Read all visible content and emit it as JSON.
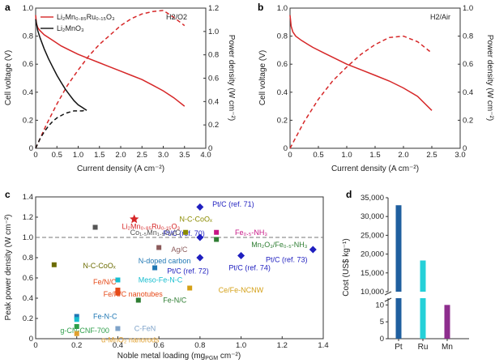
{
  "chart_data": [
    {
      "panel": "a",
      "type": "line",
      "corner_label": "H2/O2",
      "xlabel": "Current density (A cm⁻²)",
      "ylabel_left": "Cell voltage (V)",
      "ylabel_right": "Power density (W cm⁻²)",
      "xlim": [
        0,
        4.0
      ],
      "ylim_left": [
        0,
        1.0
      ],
      "ylim_right": [
        0,
        1.2
      ],
      "xticks": [
        "0",
        "0.5",
        "1.0",
        "1.5",
        "2.0",
        "2.5",
        "3.0",
        "3.5",
        "4.0"
      ],
      "yticks_left": [
        "0",
        "0.2",
        "0.4",
        "0.6",
        "0.8",
        "1.0"
      ],
      "yticks_right": [
        "0",
        "0.2",
        "0.4",
        "0.6",
        "0.8",
        "1.0",
        "1.2"
      ],
      "legend": [
        {
          "name": "Li₂Mn₀.₈₅Ru₀.₁₅O₃",
          "color": "#d62728"
        },
        {
          "name": "Li₂MnO₃",
          "color": "#111111"
        }
      ],
      "series": [
        {
          "name": "Li2Mn0.85Ru0.15O3 voltage",
          "color": "#d62728",
          "style": "solid",
          "axis": "left",
          "x": [
            0,
            0.02,
            0.05,
            0.1,
            0.2,
            0.4,
            0.6,
            0.8,
            1.0,
            1.25,
            1.5,
            1.75,
            2.0,
            2.25,
            2.5,
            2.75,
            3.0,
            3.25,
            3.5
          ],
          "y": [
            0.95,
            0.89,
            0.86,
            0.84,
            0.81,
            0.77,
            0.73,
            0.7,
            0.67,
            0.64,
            0.61,
            0.58,
            0.55,
            0.52,
            0.49,
            0.45,
            0.41,
            0.36,
            0.3
          ]
        },
        {
          "name": "Li2Mn0.85Ru0.15O3 power",
          "color": "#d62728",
          "style": "dashed",
          "axis": "right",
          "x": [
            0,
            0.25,
            0.5,
            0.75,
            1.0,
            1.25,
            1.5,
            1.75,
            2.0,
            2.25,
            2.5,
            2.75,
            3.0,
            3.25,
            3.5
          ],
          "y": [
            0,
            0.2,
            0.38,
            0.54,
            0.67,
            0.79,
            0.89,
            0.97,
            1.05,
            1.11,
            1.15,
            1.17,
            1.18,
            1.12,
            1.05
          ]
        },
        {
          "name": "Li2MnO3 voltage",
          "color": "#111111",
          "style": "solid",
          "axis": "left",
          "x": [
            0,
            0.05,
            0.1,
            0.2,
            0.3,
            0.4,
            0.5,
            0.6,
            0.7,
            0.8,
            0.9,
            1.0,
            1.1,
            1.2
          ],
          "y": [
            0.92,
            0.84,
            0.79,
            0.71,
            0.64,
            0.58,
            0.52,
            0.47,
            0.42,
            0.38,
            0.34,
            0.31,
            0.29,
            0.27
          ]
        },
        {
          "name": "Li2MnO3 power",
          "color": "#111111",
          "style": "dashed",
          "axis": "right",
          "x": [
            0,
            0.1,
            0.2,
            0.3,
            0.4,
            0.5,
            0.6,
            0.7,
            0.8,
            0.9,
            1.0,
            1.1,
            1.2
          ],
          "y": [
            0,
            0.08,
            0.14,
            0.19,
            0.23,
            0.26,
            0.28,
            0.3,
            0.31,
            0.32,
            0.32,
            0.32,
            0.33
          ]
        }
      ]
    },
    {
      "panel": "b",
      "type": "line",
      "corner_label": "H2/Air",
      "xlabel": "Current density (A cm⁻²)",
      "ylabel_left": "Cell voltage (V)",
      "ylabel_right": "Power density (W cm⁻²)",
      "xlim": [
        0,
        3.0
      ],
      "ylim_left": [
        0,
        1.0
      ],
      "ylim_right": [
        0,
        1.0
      ],
      "xticks": [
        "0",
        "0.5",
        "1.0",
        "1.5",
        "2.0",
        "2.5",
        "3.0"
      ],
      "yticks_left": [
        "0",
        "0.2",
        "0.4",
        "0.6",
        "0.8",
        "1.0"
      ],
      "yticks_right": [
        "0",
        "0.2",
        "0.4",
        "0.6",
        "0.8",
        "1.0"
      ],
      "series": [
        {
          "name": "voltage",
          "color": "#d62728",
          "style": "solid",
          "axis": "left",
          "x": [
            0,
            0.02,
            0.05,
            0.1,
            0.2,
            0.4,
            0.6,
            0.8,
            1.0,
            1.25,
            1.5,
            1.75,
            2.0,
            2.25,
            2.5
          ],
          "y": [
            0.95,
            0.87,
            0.83,
            0.8,
            0.77,
            0.72,
            0.68,
            0.64,
            0.6,
            0.56,
            0.52,
            0.48,
            0.43,
            0.37,
            0.27
          ]
        },
        {
          "name": "power",
          "color": "#d62728",
          "style": "dashed",
          "axis": "right",
          "x": [
            0,
            0.25,
            0.5,
            0.75,
            1.0,
            1.25,
            1.5,
            1.75,
            2.0,
            2.25,
            2.5
          ],
          "y": [
            0,
            0.19,
            0.35,
            0.48,
            0.58,
            0.67,
            0.74,
            0.79,
            0.8,
            0.76,
            0.68
          ]
        }
      ]
    },
    {
      "panel": "c",
      "type": "scatter",
      "xlabel": "Noble metal loading (mg",
      "xlabel_sub": "PGM",
      "xlabel_unit": " cm⁻²)",
      "ylabel": "Peak power density (W cm⁻²)",
      "xlim": [
        0,
        1.4
      ],
      "ylim": [
        0,
        1.4
      ],
      "xticks": [
        "0",
        "0.2",
        "0.4",
        "0.6",
        "0.8",
        "1.0",
        "1.2",
        "1.4"
      ],
      "yticks": [
        "0",
        "0.2",
        "0.4",
        "0.6",
        "0.8",
        "1.0",
        "1.2",
        "1.4"
      ],
      "reference_line": 1.0,
      "points": [
        {
          "x": 0.48,
          "y": 1.18,
          "marker": "star",
          "color": "#d62728",
          "label": "Li₂Mn₀.₈₅Ru₀.₁₅O₃",
          "lx": 0.42,
          "ly": 1.11,
          "lcolor": "#d62728"
        },
        {
          "x": 0.8,
          "y": 1.3,
          "marker": "diamond",
          "color": "#1f1fbf",
          "label": "Pt/C (ref. 71)",
          "lx": 0.86,
          "ly": 1.33,
          "lcolor": "#1f1fbf"
        },
        {
          "x": 0.8,
          "y": 1.0,
          "marker": "diamond",
          "color": "#1f1fbf",
          "label": "Pt/C (ref. 70)",
          "lx": 0.62,
          "ly": 1.04,
          "lcolor": "#1f1fbf"
        },
        {
          "x": 0.8,
          "y": 0.8,
          "marker": "diamond",
          "color": "#1f1fbf",
          "label": "Pt/C (ref. 72)",
          "lx": 0.64,
          "ly": 0.67,
          "lcolor": "#1f1fbf"
        },
        {
          "x": 1.0,
          "y": 0.82,
          "marker": "diamond",
          "color": "#1f1fbf",
          "label": "Pt/C (ref. 74)",
          "lx": 0.94,
          "ly": 0.7,
          "lcolor": "#1f1fbf"
        },
        {
          "x": 1.35,
          "y": 0.88,
          "marker": "diamond",
          "color": "#1f1fbf",
          "label": "Pt/C (ref. 73)",
          "lx": 1.12,
          "ly": 0.78,
          "lcolor": "#1f1fbf"
        },
        {
          "x": 0.29,
          "y": 1.1,
          "marker": "square",
          "color": "#555555",
          "label": "Co₁.₅Mn₁.₅O₄/C",
          "lx": 0.46,
          "ly": 1.05,
          "lcolor": "#555555"
        },
        {
          "x": 0.73,
          "y": 1.05,
          "marker": "square",
          "color": "#8b8b00",
          "label": "N-C-CoOₓ",
          "lx": 0.7,
          "ly": 1.18,
          "lcolor": "#8b8b00"
        },
        {
          "x": 0.88,
          "y": 1.05,
          "marker": "square",
          "color": "#c71585",
          "label": "Fe₀.₅-NH₃",
          "lx": 0.97,
          "ly": 1.05,
          "lcolor": "#c71585"
        },
        {
          "x": 0.88,
          "y": 0.98,
          "marker": "square",
          "color": "#2e7d32",
          "label": "Mn₂O₃/Fe₀.₅-NH₃",
          "lx": 1.05,
          "ly": 0.93,
          "lcolor": "#2e7d32"
        },
        {
          "x": 0.6,
          "y": 0.9,
          "marker": "square",
          "color": "#8b5a5a",
          "label": "Ag/C",
          "lx": 0.66,
          "ly": 0.88,
          "lcolor": "#8b5a5a"
        },
        {
          "x": 0.09,
          "y": 0.73,
          "marker": "square",
          "color": "#6b6b00",
          "label": "N-C-CoOₓ",
          "lx": 0.23,
          "ly": 0.72,
          "lcolor": "#6b6b00"
        },
        {
          "x": 0.58,
          "y": 0.7,
          "marker": "square",
          "color": "#1f77b4",
          "label": "N-doped carbon",
          "lx": 0.5,
          "ly": 0.77,
          "lcolor": "#1f77b4"
        },
        {
          "x": 0.4,
          "y": 0.58,
          "marker": "square",
          "color": "#17becf",
          "label": "Meso-Fe-N-C",
          "lx": 0.5,
          "ly": 0.58,
          "lcolor": "#17becf"
        },
        {
          "x": 0.4,
          "y": 0.48,
          "marker": "square",
          "color": "#e64a19",
          "label": "Fe/N/C",
          "lx": 0.28,
          "ly": 0.56,
          "lcolor": "#e64a19"
        },
        {
          "x": 0.4,
          "y": 0.45,
          "marker": "square",
          "color": "#e64a19",
          "label": "Fe/N/C nanotubes",
          "lx": 0.33,
          "ly": 0.44,
          "lcolor": "#e64a19"
        },
        {
          "x": 0.5,
          "y": 0.38,
          "marker": "square",
          "color": "#2e7d32",
          "label": "Fe-N/C",
          "lx": 0.62,
          "ly": 0.38,
          "lcolor": "#2e7d32"
        },
        {
          "x": 0.75,
          "y": 0.5,
          "marker": "square",
          "color": "#d4a017",
          "label": "Ce/Fe-NCNW",
          "lx": 0.89,
          "ly": 0.48,
          "lcolor": "#d4a017"
        },
        {
          "x": 0.2,
          "y": 0.22,
          "marker": "square",
          "color": "#1f77b4",
          "label": "Fe-N-C",
          "lx": 0.28,
          "ly": 0.22,
          "lcolor": "#1f77b4"
        },
        {
          "x": 0.2,
          "y": 0.19,
          "marker": "square",
          "color": "#17becf",
          "label": "",
          "lx": 0,
          "ly": 0,
          "lcolor": "#17becf"
        },
        {
          "x": 0.4,
          "y": 0.1,
          "marker": "square",
          "color": "#7fa3c9",
          "label": "C-FeN",
          "lx": 0.48,
          "ly": 0.1,
          "lcolor": "#7fa3c9"
        },
        {
          "x": 0.2,
          "y": 0.12,
          "marker": "square",
          "color": "#2e9e4a",
          "label": "g-CN-CNF-700",
          "lx": 0.12,
          "ly": 0.08,
          "lcolor": "#2e9e4a"
        },
        {
          "x": 0.2,
          "y": 0.05,
          "marker": "square",
          "color": "#e0a030",
          "label": "α-MnO₂ nanorods",
          "lx": 0.32,
          "ly": -0.01,
          "lcolor": "#e0a030"
        }
      ]
    },
    {
      "panel": "d",
      "type": "bar",
      "ylabel": "Cost (US$ kg⁻¹)",
      "categories": [
        "Pt",
        "Ru",
        "Mn"
      ],
      "values": [
        33000,
        18300,
        10
      ],
      "colors": [
        "#1f5f9f",
        "#25d0d8",
        "#8e2e8e"
      ],
      "upper_ticks": [
        "10,000",
        "15,000",
        "20,000",
        "25,000",
        "30,000",
        "35,000"
      ],
      "lower_ticks": [
        "0",
        "5",
        "10"
      ],
      "broken_axis": {
        "lower_range": [
          0,
          12
        ],
        "upper_range": [
          10000,
          35000
        ]
      }
    }
  ]
}
